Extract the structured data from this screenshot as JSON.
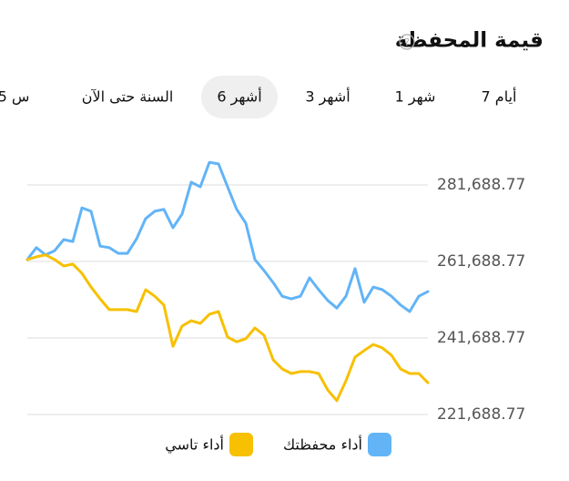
{
  "header": {
    "title": "قيمة المحفظة",
    "tabs": [
      "7 أيام",
      "1 شهر",
      "3 أشهر",
      "6 أشهر",
      "السنة حتى الآن",
      "5 س"
    ],
    "selected_tab": 3
  },
  "chart_data": {
    "type": "line",
    "series": [
      {
        "name": "أداء محفظتك",
        "color": "#62b4f7",
        "values": [
          262200,
          265300,
          263400,
          264500,
          267400,
          266900,
          275700,
          274800,
          265700,
          265300,
          263800,
          263800,
          267600,
          272900,
          274800,
          275300,
          270500,
          274100,
          282400,
          281200,
          287600,
          287200,
          281200,
          275300,
          271700,
          262200,
          259300,
          256200,
          252600,
          251900,
          252600,
          257400,
          254300,
          251500,
          249500,
          252600,
          259800,
          251000,
          255000,
          254300,
          252600,
          250300,
          248600,
          252600,
          253800
        ]
      },
      {
        "name": "أداء تاسي",
        "color": "#f7c000",
        "values": [
          262200,
          262900,
          263400,
          262200,
          260500,
          261000,
          258600,
          255000,
          251900,
          249100,
          249100,
          249100,
          248600,
          254300,
          252600,
          250300,
          239500,
          244800,
          246200,
          245500,
          247900,
          248600,
          241900,
          240700,
          241500,
          244300,
          242400,
          236000,
          233600,
          232400,
          232900,
          232900,
          232400,
          228100,
          225300,
          230500,
          236700,
          238400,
          240000,
          239100,
          237200,
          233600,
          232400,
          232400,
          230000
        ]
      }
    ],
    "ylim": [
      221688.77,
      289688.77
    ],
    "yticks": [
      {
        "value": 221688.77,
        "label": "221,688.77"
      },
      {
        "value": 241688.77,
        "label": "241,688.77"
      },
      {
        "value": 261688.77,
        "label": "261,688.77"
      },
      {
        "value": 281688.77,
        "label": "281,688.77"
      }
    ],
    "grid": true
  }
}
